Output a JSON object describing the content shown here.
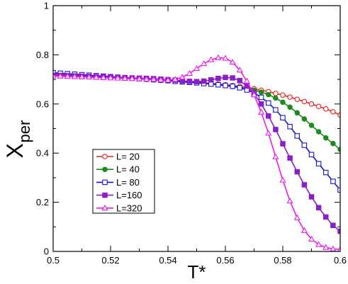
{
  "chart_data": {
    "type": "line",
    "xlabel": "T*",
    "ylabel_main": "X",
    "ylabel_sub": "per",
    "xlim": [
      0.5,
      0.6
    ],
    "ylim": [
      0,
      1
    ],
    "xticks": [
      0.5,
      0.52,
      0.54,
      0.56,
      0.58,
      0.6
    ],
    "xtick_labels": [
      "0.5",
      "0.52",
      "0.54",
      "0.56",
      "0.58",
      "0.6"
    ],
    "yticks": [
      0,
      0.2,
      0.4,
      0.6,
      0.8,
      1
    ],
    "ytick_labels": [
      "0",
      "0.2",
      "0.4",
      "0.6",
      "0.8",
      "1"
    ],
    "grid": false,
    "legend_position": "lower-left",
    "x": [
      0.5,
      0.5025,
      0.505,
      0.5075,
      0.51,
      0.5125,
      0.515,
      0.5175,
      0.52,
      0.5225,
      0.525,
      0.5275,
      0.53,
      0.5325,
      0.535,
      0.5375,
      0.54,
      0.5425,
      0.545,
      0.5475,
      0.55,
      0.5525,
      0.555,
      0.5575,
      0.56,
      0.5625,
      0.565,
      0.5675,
      0.57,
      0.5725,
      0.575,
      0.5775,
      0.58,
      0.5825,
      0.585,
      0.5875,
      0.59,
      0.5925,
      0.595,
      0.5975,
      0.6
    ],
    "series": [
      {
        "name": "L= 20",
        "color": "#e8211b",
        "marker": "circle-open",
        "values": [
          0.72,
          0.719,
          0.718,
          0.717,
          0.716,
          0.715,
          0.713,
          0.712,
          0.711,
          0.709,
          0.708,
          0.706,
          0.704,
          0.703,
          0.701,
          0.699,
          0.697,
          0.695,
          0.693,
          0.691,
          0.689,
          0.687,
          0.684,
          0.681,
          0.678,
          0.675,
          0.671,
          0.667,
          0.662,
          0.656,
          0.65,
          0.643,
          0.636,
          0.628,
          0.619,
          0.61,
          0.6,
          0.59,
          0.58,
          0.568,
          0.555
        ]
      },
      {
        "name": "L= 40",
        "color": "#1c8a1c",
        "marker": "circle-filled",
        "values": [
          0.725,
          0.723,
          0.721,
          0.72,
          0.718,
          0.716,
          0.714,
          0.712,
          0.71,
          0.708,
          0.706,
          0.704,
          0.702,
          0.7,
          0.698,
          0.696,
          0.694,
          0.692,
          0.69,
          0.688,
          0.686,
          0.684,
          0.681,
          0.678,
          0.675,
          0.671,
          0.667,
          0.662,
          0.656,
          0.648,
          0.638,
          0.624,
          0.607,
          0.587,
          0.564,
          0.539,
          0.513,
          0.487,
          0.462,
          0.439,
          0.415
        ]
      },
      {
        "name": "L= 80",
        "color": "#1414d8",
        "marker": "square-open",
        "values": [
          0.727,
          0.725,
          0.723,
          0.721,
          0.719,
          0.717,
          0.715,
          0.713,
          0.711,
          0.709,
          0.707,
          0.705,
          0.703,
          0.701,
          0.699,
          0.697,
          0.695,
          0.692,
          0.69,
          0.688,
          0.686,
          0.683,
          0.681,
          0.678,
          0.675,
          0.672,
          0.666,
          0.657,
          0.645,
          0.627,
          0.604,
          0.576,
          0.544,
          0.508,
          0.47,
          0.432,
          0.394,
          0.357,
          0.321,
          0.285,
          0.25
        ]
      },
      {
        "name": "L=160",
        "color": "#8b1ec8",
        "marker": "square-filled",
        "values": [
          0.716,
          0.716,
          0.715,
          0.714,
          0.713,
          0.712,
          0.711,
          0.71,
          0.709,
          0.708,
          0.707,
          0.706,
          0.705,
          0.704,
          0.703,
          0.701,
          0.699,
          0.697,
          0.694,
          0.692,
          0.691,
          0.693,
          0.698,
          0.704,
          0.708,
          0.706,
          0.695,
          0.673,
          0.641,
          0.6,
          0.551,
          0.496,
          0.438,
          0.38,
          0.324,
          0.271,
          0.222,
          0.178,
          0.14,
          0.106,
          0.082
        ]
      },
      {
        "name": "L=320",
        "color": "#ee18ee",
        "marker": "triangle-open",
        "values": [
          0.714,
          0.713,
          0.712,
          0.711,
          0.71,
          0.709,
          0.708,
          0.707,
          0.706,
          0.705,
          0.704,
          0.703,
          0.702,
          0.701,
          0.7,
          0.698,
          0.697,
          0.7,
          0.709,
          0.724,
          0.744,
          0.764,
          0.78,
          0.788,
          0.786,
          0.77,
          0.738,
          0.693,
          0.637,
          0.566,
          0.481,
          0.385,
          0.29,
          0.205,
          0.137,
          0.085,
          0.05,
          0.028,
          0.016,
          0.01,
          0.008
        ]
      }
    ]
  }
}
